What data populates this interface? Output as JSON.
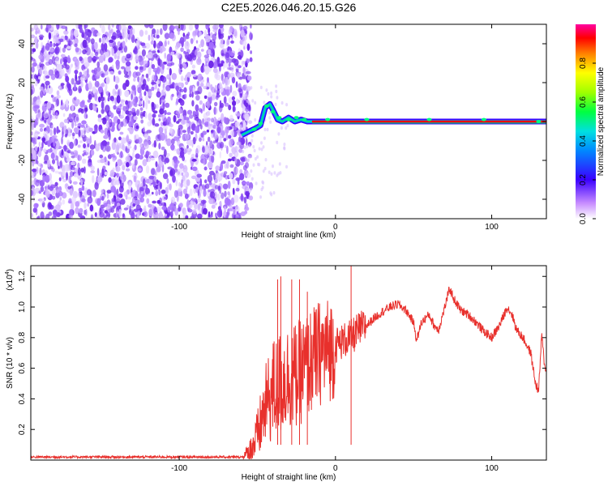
{
  "chart_data": [
    {
      "type": "heatmap",
      "title": "C2E5.2026.046.20.15.G26",
      "xlabel": "Height of straight line (km)",
      "ylabel": "Frequency (Hz)",
      "xlim": [
        -195,
        135
      ],
      "ylim": [
        -50,
        50
      ],
      "xticks": [
        -100,
        0,
        100
      ],
      "yticks": [
        -40,
        -20,
        0,
        20,
        40
      ],
      "noise_region_x": [
        -195,
        -60
      ],
      "transition_region_x": [
        -60,
        -15
      ],
      "carrier_frequency_hz": 0,
      "carrier_x_range": [
        -15,
        135
      ],
      "carrier_track": [
        {
          "x": -60,
          "y": -7
        },
        {
          "x": -55,
          "y": -5
        },
        {
          "x": -50,
          "y": -3
        },
        {
          "x": -48,
          "y": -2
        },
        {
          "x": -45,
          "y": 7
        },
        {
          "x": -42,
          "y": 9
        },
        {
          "x": -40,
          "y": 6
        },
        {
          "x": -37,
          "y": 1
        },
        {
          "x": -34,
          "y": 0
        },
        {
          "x": -30,
          "y": 2
        },
        {
          "x": -26,
          "y": 0
        },
        {
          "x": -22,
          "y": 1
        },
        {
          "x": -18,
          "y": 0
        },
        {
          "x": 135,
          "y": 0
        }
      ],
      "colorbar": {
        "label": "Normalized spectral amplitude",
        "ticks": [
          "0.0",
          "0.2",
          "0.4",
          "0.6",
          "0.8"
        ],
        "range": [
          0,
          1
        ]
      }
    },
    {
      "type": "line",
      "xlabel": "Height of straight line (km)",
      "ylabel": "SNR (10 * v/v)",
      "y_multiplier": "(x10",
      "y_multiplier_exp": "4",
      "y_multiplier_close": ")",
      "xlim": [
        -195,
        135
      ],
      "ylim": [
        0,
        1.27
      ],
      "xticks": [
        -100,
        0,
        100
      ],
      "yticks": [
        "0.2",
        "0.4",
        "0.6",
        "0.8",
        "1.0",
        "1.2"
      ],
      "series": [
        {
          "name": "SNR",
          "color": "#e8302c",
          "envelope": [
            {
              "x": -195,
              "y": 0.02
            },
            {
              "x": -60,
              "y": 0.02
            },
            {
              "x": -55,
              "y": 0.05
            },
            {
              "x": -50,
              "y": 0.15
            },
            {
              "x": -45,
              "y": 0.35
            },
            {
              "x": -40,
              "y": 0.45
            },
            {
              "x": -35,
              "y": 0.5
            },
            {
              "x": -30,
              "y": 0.55
            },
            {
              "x": -25,
              "y": 0.55
            },
            {
              "x": -20,
              "y": 0.6
            },
            {
              "x": -15,
              "y": 0.65
            },
            {
              "x": -10,
              "y": 0.7
            },
            {
              "x": -5,
              "y": 0.72
            },
            {
              "x": 0,
              "y": 0.75
            },
            {
              "x": 5,
              "y": 0.78
            },
            {
              "x": 10,
              "y": 0.8
            },
            {
              "x": 15,
              "y": 0.85
            },
            {
              "x": 20,
              "y": 0.88
            },
            {
              "x": 25,
              "y": 0.93
            },
            {
              "x": 30,
              "y": 0.97
            },
            {
              "x": 35,
              "y": 1.0
            },
            {
              "x": 40,
              "y": 1.02
            },
            {
              "x": 45,
              "y": 0.98
            },
            {
              "x": 50,
              "y": 0.9
            },
            {
              "x": 52,
              "y": 0.78
            },
            {
              "x": 55,
              "y": 0.9
            },
            {
              "x": 60,
              "y": 0.95
            },
            {
              "x": 63,
              "y": 0.88
            },
            {
              "x": 66,
              "y": 0.85
            },
            {
              "x": 70,
              "y": 1.0
            },
            {
              "x": 73,
              "y": 1.12
            },
            {
              "x": 76,
              "y": 1.05
            },
            {
              "x": 80,
              "y": 0.98
            },
            {
              "x": 85,
              "y": 0.95
            },
            {
              "x": 90,
              "y": 0.9
            },
            {
              "x": 95,
              "y": 0.84
            },
            {
              "x": 100,
              "y": 0.8
            },
            {
              "x": 105,
              "y": 0.88
            },
            {
              "x": 110,
              "y": 1.0
            },
            {
              "x": 113,
              "y": 0.95
            },
            {
              "x": 116,
              "y": 0.85
            },
            {
              "x": 120,
              "y": 0.8
            },
            {
              "x": 125,
              "y": 0.7
            },
            {
              "x": 128,
              "y": 0.5
            },
            {
              "x": 130,
              "y": 0.45
            },
            {
              "x": 132,
              "y": 0.82
            },
            {
              "x": 134,
              "y": 0.6
            },
            {
              "x": 135,
              "y": 0.6
            }
          ],
          "spikes": [
            {
              "x": -37,
              "y": 1.18
            },
            {
              "x": -35,
              "y": 1.2
            },
            {
              "x": -28,
              "y": 1.18
            },
            {
              "x": -23,
              "y": 1.18
            },
            {
              "x": -18,
              "y": 1.1
            },
            {
              "x": 10,
              "y": 1.27
            }
          ]
        }
      ]
    }
  ]
}
